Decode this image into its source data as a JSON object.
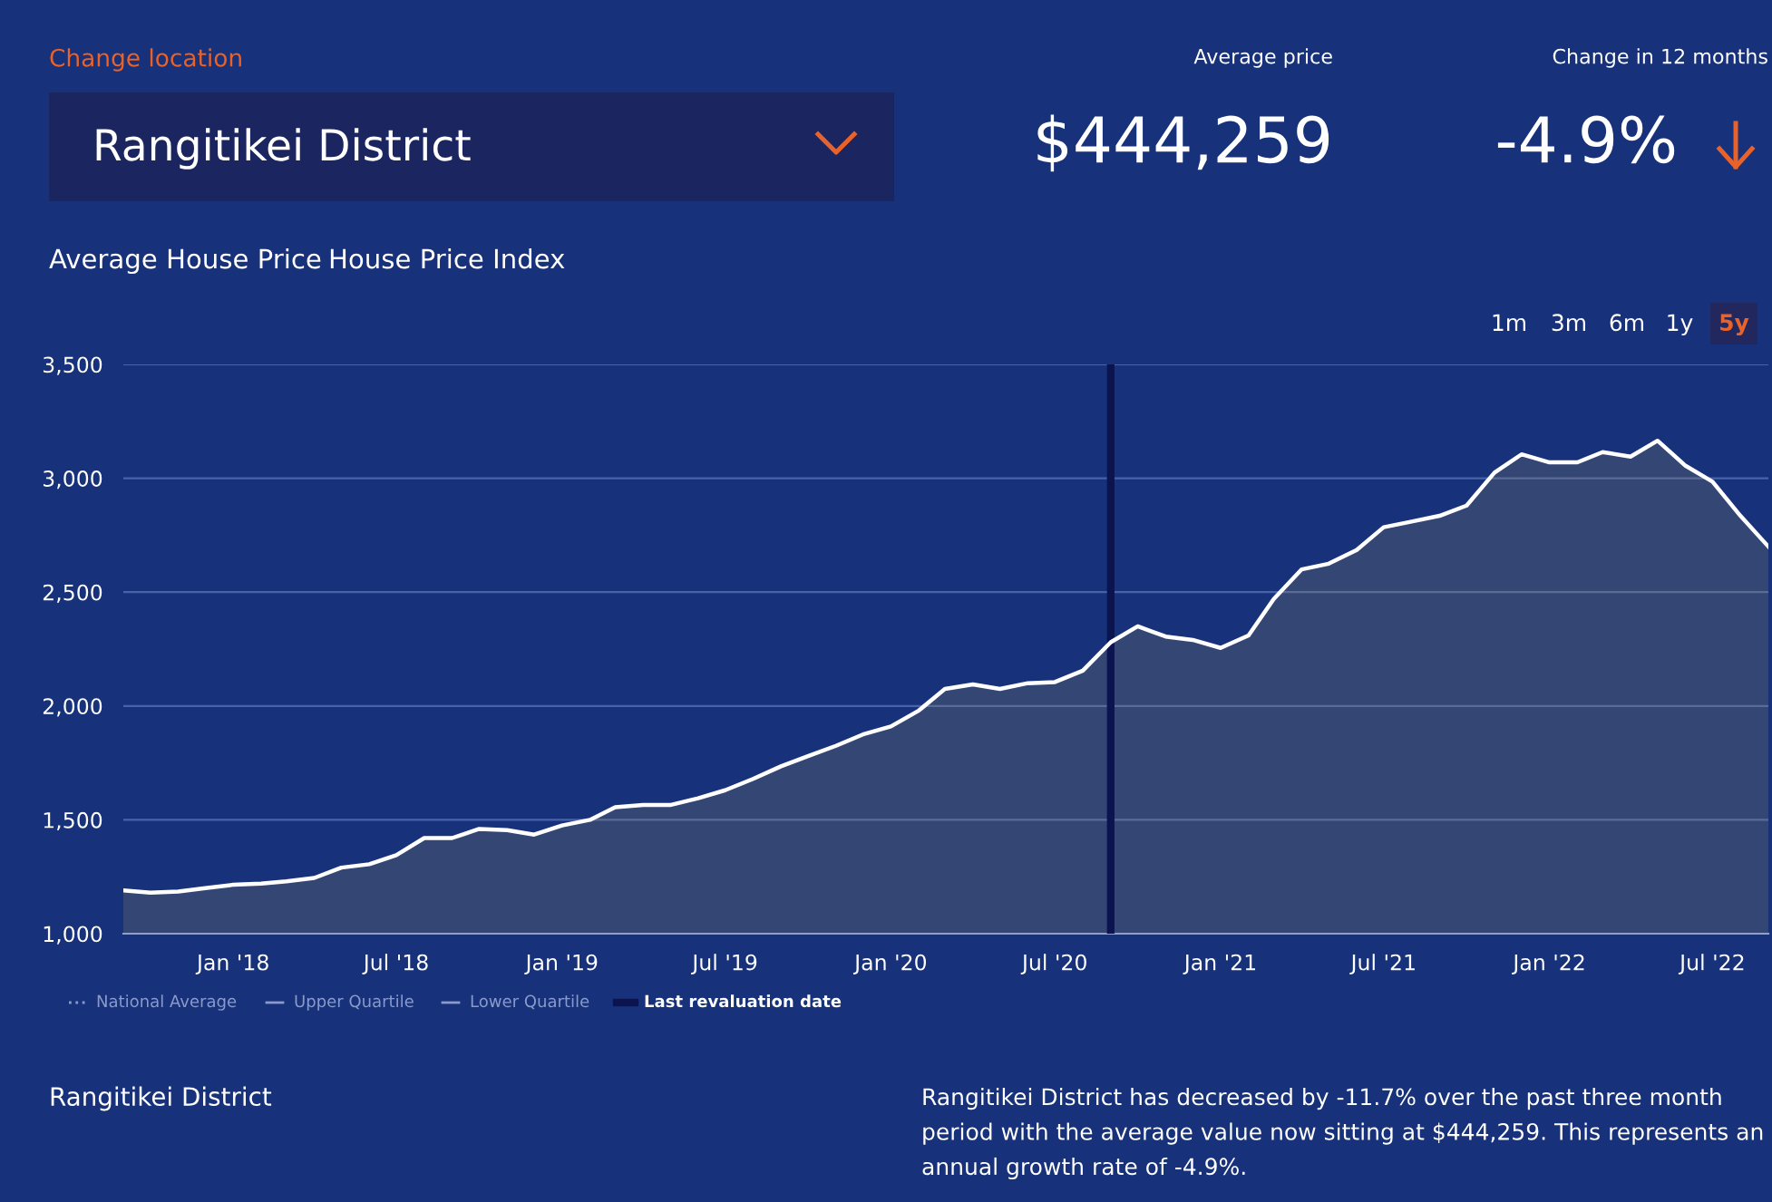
{
  "chart_data": {
    "type": "area",
    "title": "Rangitikei District",
    "x": [
      "2017-09",
      "2017-10",
      "2017-11",
      "2017-12",
      "2018-01",
      "2018-02",
      "2018-03",
      "2018-04",
      "2018-05",
      "2018-06",
      "2018-07",
      "2018-08",
      "2018-09",
      "2018-10",
      "2018-11",
      "2018-12",
      "2019-01",
      "2019-02",
      "2019-03",
      "2019-04",
      "2019-05",
      "2019-06",
      "2019-07",
      "2019-08",
      "2019-09",
      "2019-10",
      "2019-11",
      "2019-12",
      "2020-01",
      "2020-02",
      "2020-03",
      "2020-04",
      "2020-05",
      "2020-06",
      "2020-07",
      "2020-08",
      "2020-09",
      "2020-10",
      "2020-11",
      "2020-12",
      "2021-01",
      "2021-02",
      "2021-03",
      "2021-04",
      "2021-05",
      "2021-06",
      "2021-07",
      "2021-08",
      "2021-09",
      "2021-10",
      "2021-11",
      "2021-12",
      "2022-01",
      "2022-02",
      "2022-03",
      "2022-04",
      "2022-05",
      "2022-06",
      "2022-07",
      "2022-08",
      "2022-09"
    ],
    "series": [
      {
        "color": "#ffffff",
        "values": [
          1190,
          1180,
          1185,
          1200,
          1215,
          1220,
          1230,
          1245,
          1290,
          1305,
          1345,
          1420,
          1420,
          1460,
          1455,
          1435,
          1475,
          1500,
          1555,
          1565,
          1565,
          1595,
          1630,
          1680,
          1735,
          1780,
          1825,
          1875,
          1910,
          1980,
          2075,
          2095,
          2075,
          2100,
          2105,
          2155,
          2280,
          2350,
          2305,
          2290,
          2255,
          2310,
          2470,
          2600,
          2625,
          2685,
          2785,
          2810,
          2835,
          2880,
          3025,
          3105,
          3070,
          3070,
          3115,
          3095,
          3165,
          3055,
          2985,
          2835,
          2700
        ]
      }
    ],
    "xlim": [
      "2017-09",
      "2022-09"
    ],
    "xticks": [
      {
        "value": "2018-01",
        "label": "Jan '18"
      },
      {
        "value": "2018-07",
        "label": "Jul '18"
      },
      {
        "value": "2019-01",
        "label": "Jan '19"
      },
      {
        "value": "2019-07",
        "label": "Jul '19"
      },
      {
        "value": "2020-01",
        "label": "Jan '20"
      },
      {
        "value": "2020-07",
        "label": "Jul '20"
      },
      {
        "value": "2021-01",
        "label": "Jan '21"
      },
      {
        "value": "2021-07",
        "label": "Jul '21"
      },
      {
        "value": "2022-01",
        "label": "Jan '22"
      },
      {
        "value": "2022-07",
        "label": "Jul '22"
      }
    ],
    "ylim": [
      1000,
      3500
    ],
    "yticks": [
      {
        "value": 1000,
        "label": "1,000"
      },
      {
        "value": 1500,
        "label": "1,500"
      },
      {
        "value": 2000,
        "label": "2,000"
      },
      {
        "value": 2500,
        "label": "2,500"
      },
      {
        "value": 3000,
        "label": "3,000"
      },
      {
        "value": 3500,
        "label": "3,500"
      }
    ],
    "grid": "y",
    "ref_lines": [
      {
        "axis": "x",
        "value": "2020-09",
        "label": "Last revaluation date",
        "color": "#0c1450"
      }
    ],
    "annotations": [
      "Change location",
      "Average price",
      "$444,259",
      "Change in 12 months",
      "-4.9%",
      "Average House Price",
      "House Price Index",
      "1m",
      "3m",
      "6m",
      "1y",
      "5y",
      "National Average",
      "Upper Quartile",
      "Lower Quartile",
      "Rangitikei District",
      "Rangitikei District has decreased by -11.7% over the past three month period with the average value now sitting at $444,259. This represents an annual growth rate of -4.9%."
    ]
  }
}
